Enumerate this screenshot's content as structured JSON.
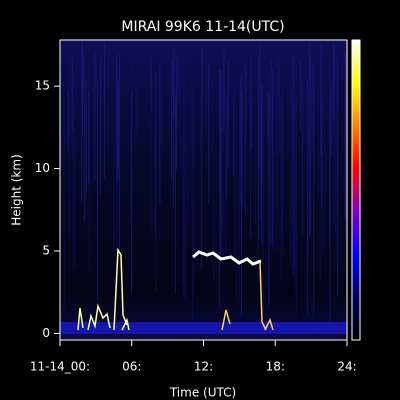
{
  "chart_data": {
    "type": "heatmap",
    "title": "MIRAI 99K6 11-14(UTC)",
    "xlabel": "Time (UTC)",
    "ylabel": "Height (km)",
    "xlim": [
      0,
      24
    ],
    "xticks": [
      {
        "value": 0,
        "label": "11-14_00:"
      },
      {
        "value": 6,
        "label": "06:"
      },
      {
        "value": 12,
        "label": "12:"
      },
      {
        "value": 18,
        "label": "18:"
      },
      {
        "value": 24,
        "label": "24:"
      }
    ],
    "ylim": [
      -0.4,
      17.8
    ],
    "yticks": [
      0,
      5,
      10,
      15
    ],
    "colormap": [
      "#000000",
      "#000060",
      "#0000ff",
      "#8000c0",
      "#ff0000",
      "#ff8000",
      "#ffff00",
      "#ffffff"
    ]
  }
}
